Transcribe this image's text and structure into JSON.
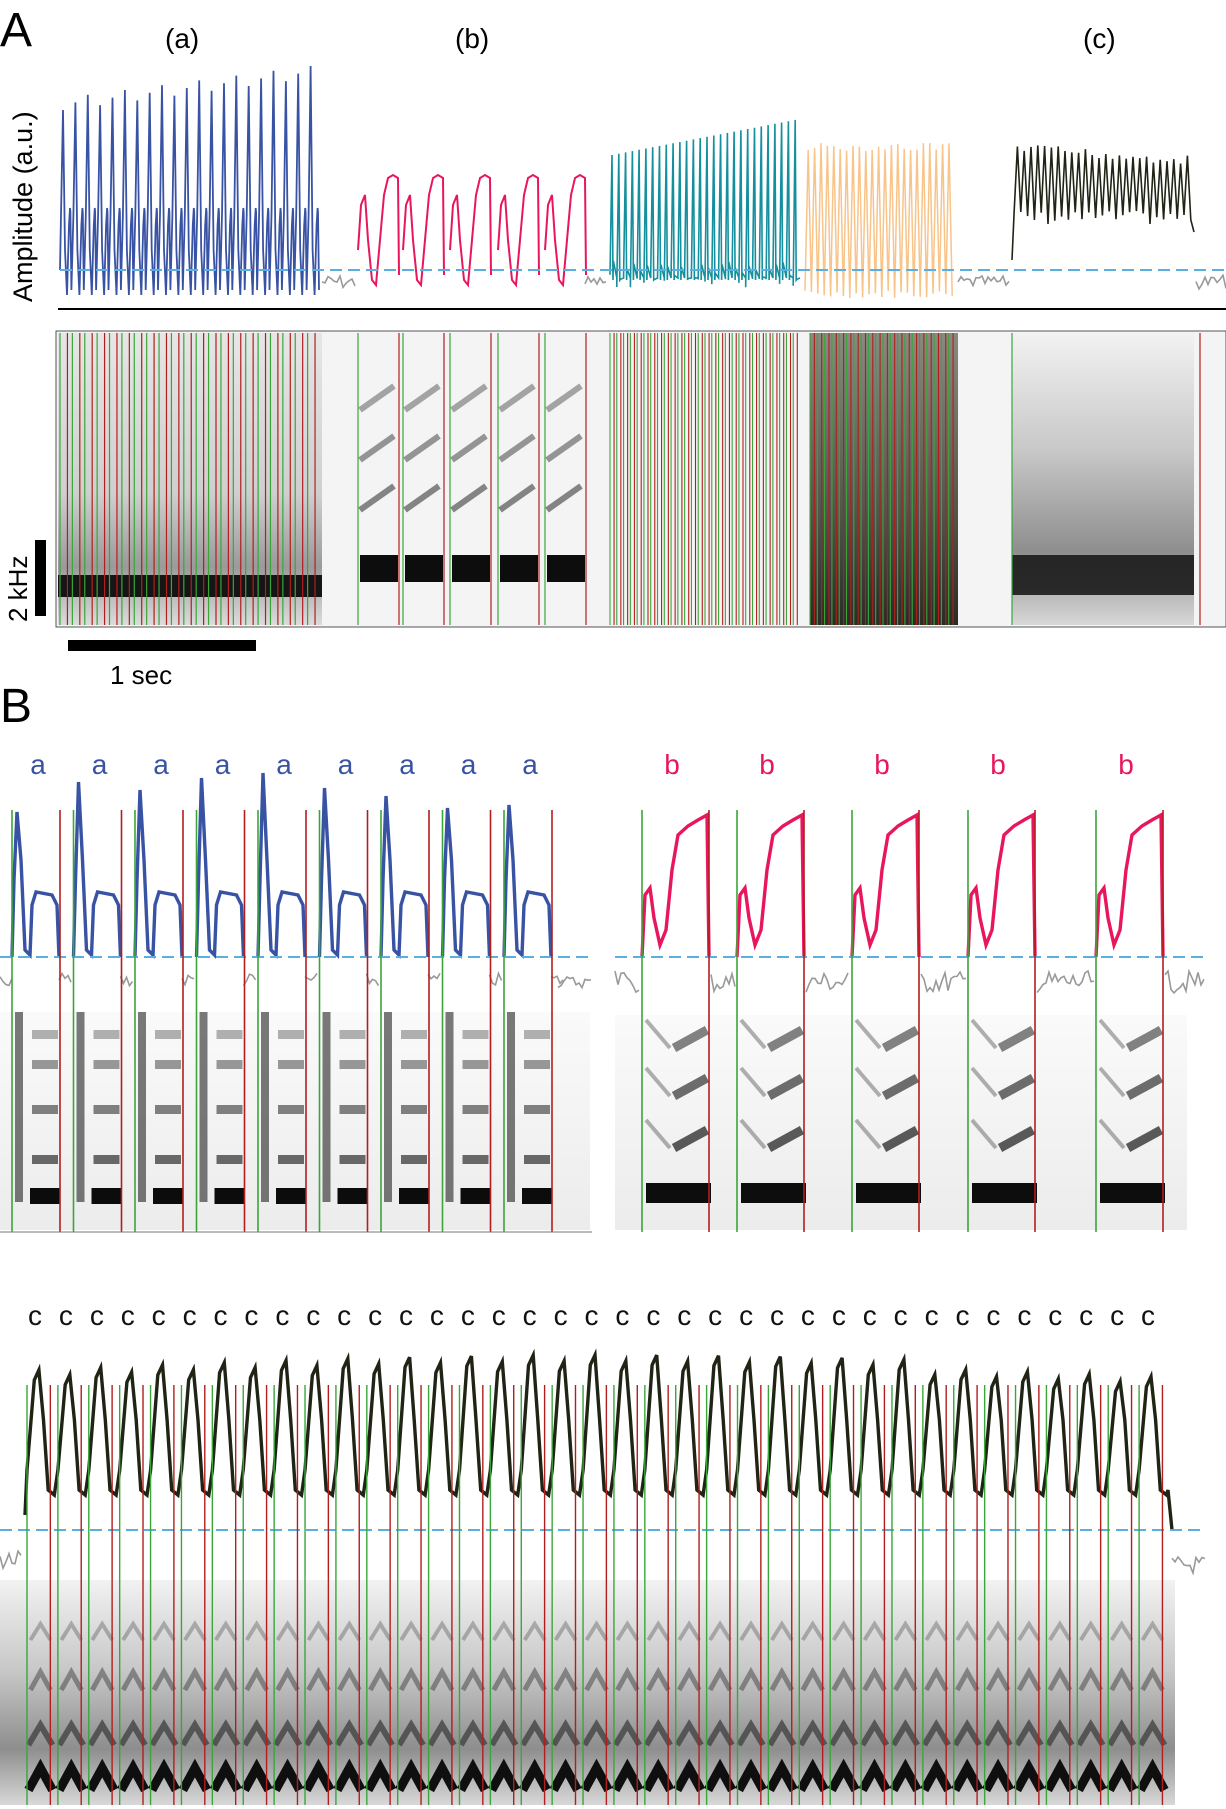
{
  "panel_labels": {
    "a": "A",
    "b": "B"
  },
  "panel_a": {
    "segment_labels": [
      "(a)",
      "(b)",
      "(c)"
    ],
    "y_axis_label": "Amplitude (a.u.)",
    "freq_scale_label": "2 kHz",
    "time_scale_label": "1 sec"
  },
  "panel_b": {
    "a_syllables": [
      "a",
      "a",
      "a",
      "a",
      "a",
      "a",
      "a",
      "a",
      "a"
    ],
    "b_syllables": [
      "b",
      "b",
      "b",
      "b",
      "b"
    ],
    "c_syllables": [
      "c",
      "c",
      "c",
      "c",
      "c",
      "c",
      "c",
      "c",
      "c",
      "c",
      "c",
      "c",
      "c",
      "c",
      "c",
      "c",
      "c",
      "c",
      "c",
      "c",
      "c",
      "c",
      "c",
      "c",
      "c",
      "c",
      "c",
      "c",
      "c",
      "c",
      "c",
      "c",
      "c",
      "c",
      "c",
      "c",
      "c"
    ]
  },
  "colors": {
    "a": "#3953a4",
    "b": "#e8175d",
    "c_teal": "#138f9e",
    "c_orange": "#f8c48a",
    "c_dark": "#1f2414",
    "baseline": "#5aaee0",
    "noise": "#999999",
    "onset": "#3aa63a",
    "offset": "#b21e1e",
    "spec_dark": "#111111"
  }
}
